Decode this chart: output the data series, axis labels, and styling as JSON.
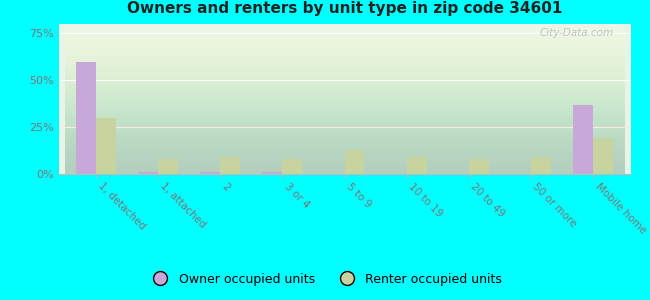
{
  "title": "Owners and renters by unit type in zip code 34601",
  "categories": [
    "1, detached",
    "1, attached",
    "2",
    "3 or 4",
    "5 to 9",
    "10 to 19",
    "20 to 49",
    "50 or more",
    "Mobile home"
  ],
  "owner_values": [
    60,
    1,
    1,
    1,
    0,
    0,
    0,
    0,
    37
  ],
  "renter_values": [
    30,
    8,
    9,
    8,
    13,
    9,
    8,
    9,
    19
  ],
  "owner_color": "#c8a8d8",
  "renter_color": "#c8d4a0",
  "background_color": "#00ffff",
  "yticks": [
    0,
    25,
    50,
    75
  ],
  "ylim": [
    0,
    80
  ],
  "watermark": "City-Data.com",
  "legend_owner": "Owner occupied units",
  "legend_renter": "Renter occupied units",
  "bar_width": 0.32
}
